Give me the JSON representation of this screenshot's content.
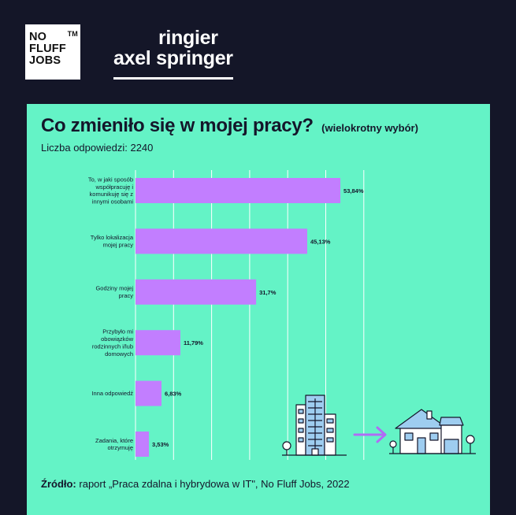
{
  "header": {
    "logo_lines": [
      "NO",
      "FLUFF",
      "JOBS"
    ],
    "logo_tm": "TM",
    "partner_line1": "ringier",
    "partner_line2": "axel springer"
  },
  "card": {
    "title": "Co zmieniło się w mojej pracy?",
    "subtitle": "(wielokrotny wybór)",
    "responses": "Liczba odpowiedzi: 2240",
    "source_label": "Źródło:",
    "source_text": "raport „Praca zdalna i hybrydowa w IT\", No Fluff Jobs, 2022"
  },
  "colors": {
    "background": "#141628",
    "panel": "#64f3c6",
    "bar": "#c27eff",
    "grid": "#ffffff",
    "text": "#14162a"
  },
  "chart_data": {
    "type": "bar",
    "orientation": "horizontal",
    "categories": [
      [
        "To, w jaki sposób",
        "współpracuję i",
        "komunikuję się z",
        "innymi osobami"
      ],
      [
        "Tylko lokalizacja",
        "mojej pracy"
      ],
      [
        "Godziny mojej",
        "pracy"
      ],
      [
        "Przybyło mi",
        "obowiązków",
        "rodzinnych i/lub",
        "domowych"
      ],
      [
        "Inna odpowiedź"
      ],
      [
        "Zadania, które",
        "otrzymuję"
      ]
    ],
    "values": [
      53.84,
      45.13,
      31.7,
      11.79,
      6.83,
      3.53
    ],
    "value_labels": [
      "53,84%",
      "45,13%",
      "31,7%",
      "11,79%",
      "6,83%",
      "3,53%"
    ],
    "xlim": [
      0,
      60
    ],
    "grid": true,
    "title": "Co zmieniło się w mojej pracy?"
  }
}
